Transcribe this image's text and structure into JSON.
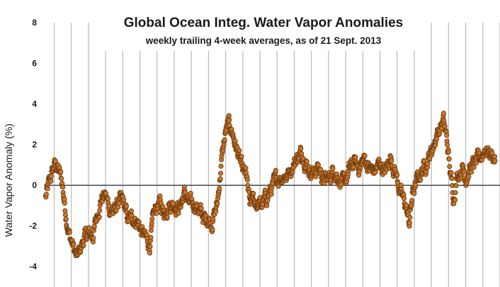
{
  "chart_data": {
    "type": "scatter",
    "title": "Global Ocean Integ. Water Vapor Anomalies",
    "subtitle": "weekly trailing 4-week averages, as of 21 Sept. 2013",
    "xlabel": "",
    "ylabel": "Water Vapor Anomaly (%)",
    "ylim": [
      -5,
      8
    ],
    "yticks": [
      -4,
      -2,
      0,
      2,
      4,
      6,
      8
    ],
    "ytick_labels": [
      "-4",
      "-2",
      "0",
      "2",
      "4",
      "6",
      "8"
    ],
    "xlim": [
      1987.4,
      2014.0
    ],
    "grid": "vertical lines every year; horizontal zero line",
    "colors": {
      "marker_fill": "#c9772a",
      "marker_edge": "#6b3a12",
      "grid": "#b8b8b8",
      "zero_line": "#555555"
    },
    "series": [
      {
        "x_unit": "year",
        "keyframes": [
          [
            1987.5,
            -0.6
          ],
          [
            1987.75,
            0.2
          ],
          [
            1988.0,
            1.0
          ],
          [
            1988.2,
            0.9
          ],
          [
            1988.45,
            0.2
          ],
          [
            1988.7,
            -1.5
          ],
          [
            1988.9,
            -2.5
          ],
          [
            1989.1,
            -3.0
          ],
          [
            1989.3,
            -3.6
          ],
          [
            1989.5,
            -3.2
          ],
          [
            1989.75,
            -2.6
          ],
          [
            1990.0,
            -2.4
          ],
          [
            1990.25,
            -2.5
          ],
          [
            1990.5,
            -1.5
          ],
          [
            1990.75,
            -0.6
          ],
          [
            1991.0,
            -0.5
          ],
          [
            1991.25,
            -1.2
          ],
          [
            1991.5,
            -1.3
          ],
          [
            1991.75,
            -0.8
          ],
          [
            1992.0,
            -0.8
          ],
          [
            1992.3,
            -1.7
          ],
          [
            1992.6,
            -1.6
          ],
          [
            1992.9,
            -1.8
          ],
          [
            1993.1,
            -2.3
          ],
          [
            1993.4,
            -2.7
          ],
          [
            1993.6,
            -2.9
          ],
          [
            1993.8,
            -1.5
          ],
          [
            1994.1,
            -0.8
          ],
          [
            1994.4,
            -1.3
          ],
          [
            1994.7,
            -0.9
          ],
          [
            1995.0,
            -0.9
          ],
          [
            1995.3,
            -1.1
          ],
          [
            1995.6,
            -0.4
          ],
          [
            1995.9,
            -1.0
          ],
          [
            1996.2,
            -0.9
          ],
          [
            1996.5,
            -1.3
          ],
          [
            1996.8,
            -1.7
          ],
          [
            1997.0,
            -1.6
          ],
          [
            1997.2,
            -1.8
          ],
          [
            1997.5,
            -1.0
          ],
          [
            1997.8,
            1.5
          ],
          [
            1998.0,
            2.6
          ],
          [
            1998.2,
            3.0
          ],
          [
            1998.4,
            2.6
          ],
          [
            1998.6,
            1.9
          ],
          [
            1998.8,
            1.3
          ],
          [
            1999.0,
            0.6
          ],
          [
            1999.2,
            0.5
          ],
          [
            1999.4,
            -1.0
          ],
          [
            1999.6,
            -0.7
          ],
          [
            1999.8,
            -0.9
          ],
          [
            2000.1,
            -1.0
          ],
          [
            2000.4,
            -0.6
          ],
          [
            2000.7,
            -0.1
          ],
          [
            2001.0,
            0.3
          ],
          [
            2001.3,
            0.5
          ],
          [
            2001.6,
            0.5
          ],
          [
            2001.9,
            1.0
          ],
          [
            2002.2,
            1.4
          ],
          [
            2002.5,
            1.6
          ],
          [
            2002.8,
            0.9
          ],
          [
            2003.1,
            0.6
          ],
          [
            2003.4,
            0.9
          ],
          [
            2003.7,
            0.3
          ],
          [
            2004.0,
            0.3
          ],
          [
            2004.3,
            0.8
          ],
          [
            2004.6,
            0.4
          ],
          [
            2004.9,
            0.0
          ],
          [
            2005.2,
            0.7
          ],
          [
            2005.5,
            1.1
          ],
          [
            2005.8,
            0.9
          ],
          [
            2006.1,
            1.3
          ],
          [
            2006.4,
            0.8
          ],
          [
            2006.7,
            0.7
          ],
          [
            2007.0,
            1.1
          ],
          [
            2007.3,
            0.6
          ],
          [
            2007.6,
            1.4
          ],
          [
            2007.9,
            0.7
          ],
          [
            2008.2,
            -0.4
          ],
          [
            2008.5,
            -1.0
          ],
          [
            2008.7,
            -1.9
          ],
          [
            2008.9,
            -0.4
          ],
          [
            2009.2,
            0.3
          ],
          [
            2009.5,
            0.8
          ],
          [
            2009.8,
            1.3
          ],
          [
            2010.1,
            1.9
          ],
          [
            2010.3,
            2.5
          ],
          [
            2010.5,
            2.8
          ],
          [
            2010.7,
            3.2
          ],
          [
            2010.9,
            2.2
          ],
          [
            2011.1,
            0.6
          ],
          [
            2011.3,
            -0.6
          ],
          [
            2011.5,
            0.5
          ],
          [
            2011.8,
            0.9
          ],
          [
            2012.0,
            0.4
          ],
          [
            2012.3,
            0.9
          ],
          [
            2012.6,
            1.1
          ],
          [
            2012.9,
            1.4
          ],
          [
            2013.1,
            1.8
          ],
          [
            2013.4,
            1.6
          ],
          [
            2013.65,
            1.4
          ],
          [
            2013.72,
            1.3
          ]
        ],
        "weeks_per_year": 52,
        "scatter": 0.35
      }
    ]
  }
}
